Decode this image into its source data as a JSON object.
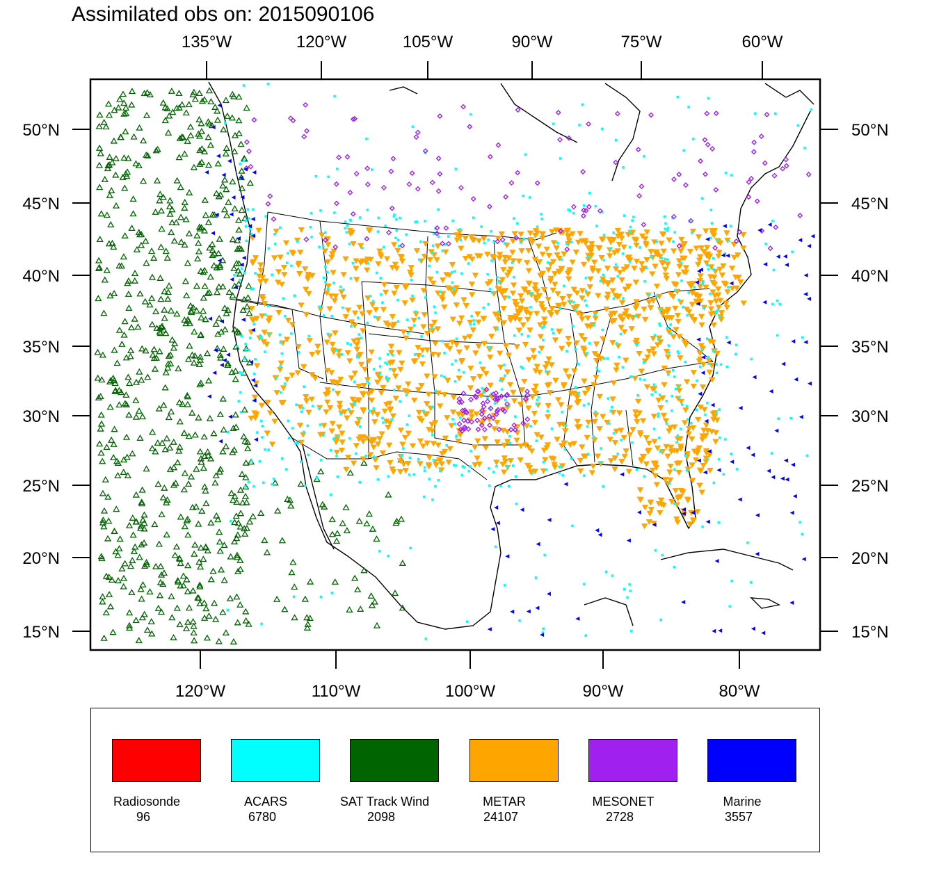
{
  "title": "Assimilated obs on: 2015090106",
  "axes": {
    "top_lon_labels": [
      "135°W",
      "120°W",
      "105°W",
      "90°W",
      "75°W",
      "60°W"
    ],
    "bottom_lon_labels": [
      "120°W",
      "110°W",
      "100°W",
      "90°W",
      "80°W"
    ],
    "lat_labels": [
      "50°N",
      "45°N",
      "40°N",
      "35°N",
      "30°N",
      "25°N",
      "20°N",
      "15°N"
    ]
  },
  "legend": {
    "items": [
      {
        "name": "Radiosonde",
        "count": "96",
        "color": "#ff0000"
      },
      {
        "name": "ACARS",
        "count": "6780",
        "color": "#00ffff"
      },
      {
        "name": "SAT Track Wind",
        "count": "2098",
        "color": "#006400"
      },
      {
        "name": "METAR",
        "count": "24107",
        "color": "#ffa500"
      },
      {
        "name": "MESONET",
        "count": "2728",
        "color": "#a020f0"
      },
      {
        "name": "Marine",
        "count": "3557",
        "color": "#0000ff"
      }
    ]
  },
  "map_extent": {
    "lon_min": -128,
    "lon_max": -74,
    "lat_min": 14,
    "lat_max": 53,
    "projection": "lambert-conformal"
  }
}
